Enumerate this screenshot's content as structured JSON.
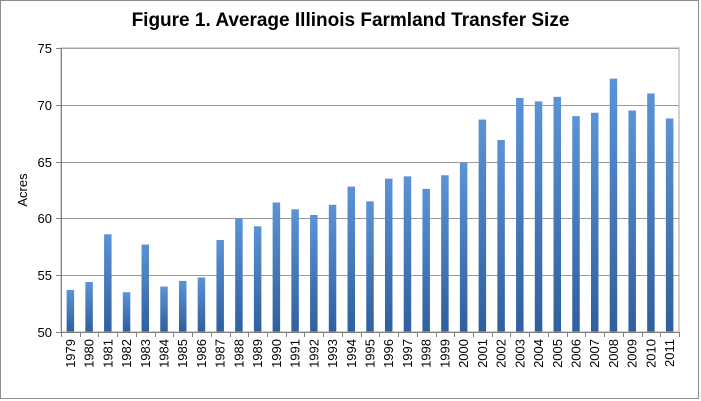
{
  "chart_data": {
    "type": "bar",
    "title": "Figure 1. Average Illinois Farmland Transfer Size",
    "xlabel": "",
    "ylabel": "Acres",
    "ylim": [
      50,
      75
    ],
    "yticks": [
      50,
      55,
      60,
      65,
      70,
      75
    ],
    "grid": true,
    "legend": "none",
    "bar_color": "#4a7ebb",
    "bar_color_light": "#5b93d6",
    "bar_color_dark": "#2f5f9e",
    "categories": [
      "1979",
      "1980",
      "1981",
      "1982",
      "1983",
      "1984",
      "1985",
      "1986",
      "1987",
      "1988",
      "1989",
      "1990",
      "1991",
      "1992",
      "1993",
      "1994",
      "1995",
      "1996",
      "1997",
      "1998",
      "1999",
      "2000",
      "2001",
      "2002",
      "2003",
      "2004",
      "2005",
      "2006",
      "2007",
      "2008",
      "2009",
      "2010",
      "2011"
    ],
    "values": [
      53.7,
      54.4,
      58.6,
      53.5,
      57.7,
      54.0,
      54.5,
      54.8,
      58.1,
      60.0,
      59.3,
      61.4,
      60.8,
      60.3,
      61.2,
      62.8,
      61.5,
      63.5,
      63.7,
      62.6,
      63.8,
      64.9,
      68.7,
      66.9,
      70.6,
      70.3,
      70.7,
      69.0,
      69.3,
      72.3,
      69.5,
      71.0,
      68.8
    ]
  }
}
